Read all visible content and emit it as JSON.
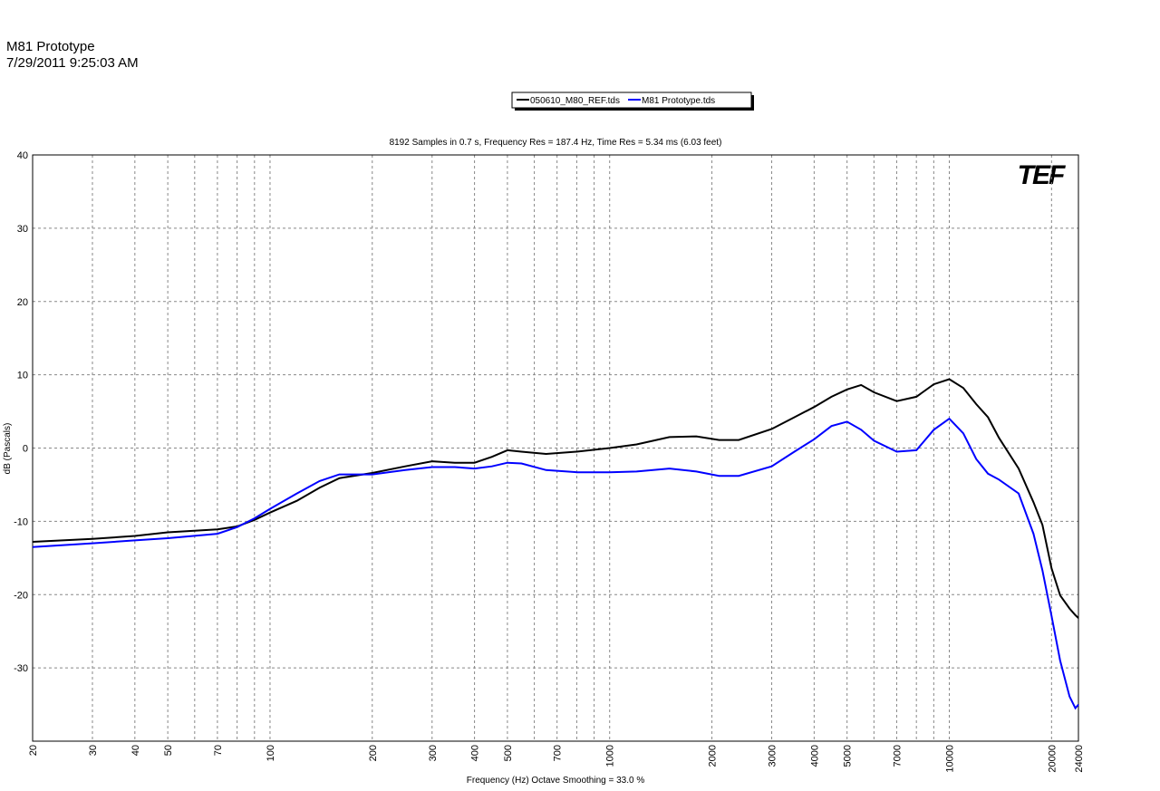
{
  "header": {
    "title": "M81 Prototype",
    "timestamp": "7/29/2011 9:25:03 AM"
  },
  "chart_data": {
    "type": "line",
    "subtitle": "8192 Samples in 0.7 s, Frequency Res = 187.4 Hz, Time Res = 5.34 ms (6.03 feet)",
    "logo": "TEF",
    "x_label": "Frequency (Hz) Octave Smoothing = 33.0 %",
    "y_label": "dB (Pascals)",
    "xscale": "log",
    "grid": true,
    "xlim": [
      20,
      24000
    ],
    "ylim": [
      -40,
      40
    ],
    "xticks": [
      20,
      30,
      40,
      50,
      70,
      100,
      200,
      300,
      400,
      500,
      700,
      1000,
      2000,
      3000,
      4000,
      5000,
      7000,
      10000,
      20000,
      24000
    ],
    "yticks": [
      -30,
      -20,
      -10,
      0,
      10,
      20,
      30,
      40
    ],
    "x": [
      20,
      30,
      40,
      50,
      70,
      80,
      90,
      100,
      120,
      140,
      160,
      200,
      250,
      300,
      350,
      400,
      450,
      500,
      550,
      650,
      800,
      1000,
      1200,
      1500,
      1800,
      2100,
      2400,
      3000,
      3500,
      4000,
      4500,
      5000,
      5500,
      6000,
      7000,
      8000,
      9000,
      10000,
      11000,
      12000,
      13000,
      14000,
      16000,
      17700,
      18800,
      20000,
      21200,
      22600,
      23500,
      24000
    ],
    "series": [
      {
        "name": "050610_M80_REF.tds",
        "color": "#000000",
        "values": [
          -12.8,
          -12.4,
          -12.0,
          -11.5,
          -11.1,
          -10.7,
          -9.8,
          -8.8,
          -7.2,
          -5.4,
          -4.1,
          -3.4,
          -2.5,
          -1.8,
          -2.0,
          -2.0,
          -1.2,
          -0.3,
          -0.5,
          -0.8,
          -0.5,
          0,
          0.5,
          1.5,
          1.6,
          1.1,
          1.1,
          2.6,
          4.2,
          5.6,
          7.0,
          8.0,
          8.6,
          7.6,
          6.4,
          7.0,
          8.7,
          9.4,
          8.2,
          6.0,
          4.2,
          1.4,
          -2.8,
          -7.4,
          -10.5,
          -16.4,
          -20.1,
          -21.9,
          -22.8,
          -23.2
        ]
      },
      {
        "name": "M81 Prototype.tds",
        "color": "#0000ff",
        "values": [
          -13.5,
          -13.0,
          -12.6,
          -12.3,
          -11.7,
          -10.8,
          -9.6,
          -8.3,
          -6.2,
          -4.5,
          -3.6,
          -3.6,
          -3.0,
          -2.6,
          -2.6,
          -2.8,
          -2.5,
          -2.0,
          -2.1,
          -3.0,
          -3.3,
          -3.3,
          -3.2,
          -2.8,
          -3.2,
          -3.8,
          -3.8,
          -2.5,
          -0.5,
          1.2,
          3.0,
          3.6,
          2.5,
          1.0,
          -0.5,
          -0.3,
          2.5,
          4.0,
          2.0,
          -1.5,
          -3.5,
          -4.3,
          -6.2,
          -11.7,
          -16.7,
          -22.9,
          -29.0,
          -33.9,
          -35.5,
          -35.0
        ]
      }
    ]
  }
}
